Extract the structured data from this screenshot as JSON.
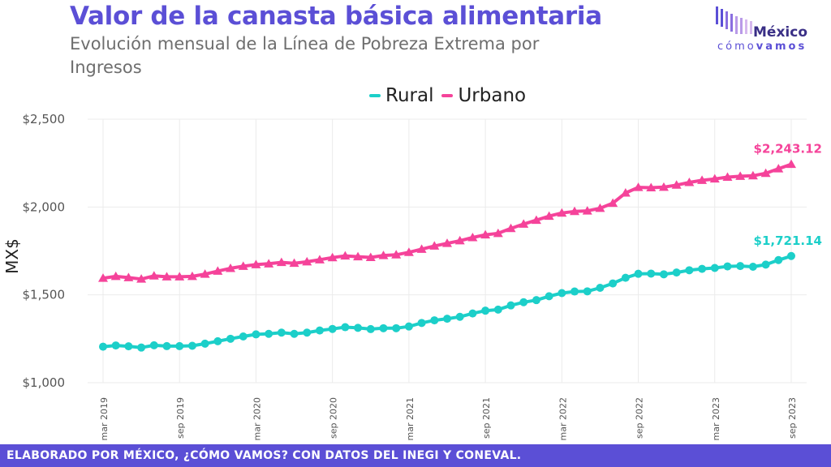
{
  "header": {
    "title": "Valor de la canasta básica alimentaria",
    "subtitle": "Evolución mensual de la Línea de Pobreza Extrema por Ingresos"
  },
  "logo": {
    "word1": "México",
    "word2_light": "cómo",
    "word2_bold": "vamos",
    "bar_colors": [
      "#5b4fd6",
      "#8a6fe0",
      "#b99ae8",
      "#d6b8ee"
    ]
  },
  "footer": {
    "text": "ELABORADO POR MÉXICO, ¿CÓMO VAMOS? CON DATOS DEL INEGI Y CONEVAL."
  },
  "colors": {
    "rural": "#1ccfc9",
    "urbano": "#f5439a",
    "brand": "#5b4fd6",
    "grid": "#ebebeb"
  },
  "chart_data": {
    "type": "line",
    "title": "Valor de la canasta básica alimentaria",
    "ylabel": "MX$",
    "xlabel": "",
    "ylim": [
      1000,
      2500
    ],
    "yticks": [
      1000,
      1500,
      2000,
      2500
    ],
    "ytick_labels": [
      "$1,000",
      "$1,500",
      "$2,000",
      "$2,500"
    ],
    "x_start": "2019-03",
    "xtick_labels": [
      "mar 2019",
      "sep 2019",
      "mar 2020",
      "sep 2020",
      "mar 2021",
      "sep 2021",
      "mar 2022",
      "sep 2022",
      "mar 2023",
      "sep 2023"
    ],
    "xtick_index": [
      0,
      6,
      12,
      18,
      24,
      30,
      36,
      42,
      48,
      54
    ],
    "grid": true,
    "legend": "top-center",
    "series": [
      {
        "name": "Rural",
        "marker": "circle",
        "end_label": "$1,721.14",
        "values": [
          1205,
          1212,
          1207,
          1200,
          1213,
          1208,
          1208,
          1210,
          1222,
          1236,
          1250,
          1263,
          1275,
          1278,
          1285,
          1278,
          1285,
          1297,
          1306,
          1316,
          1312,
          1305,
          1310,
          1310,
          1320,
          1340,
          1355,
          1364,
          1375,
          1394,
          1410,
          1416,
          1440,
          1458,
          1470,
          1492,
          1510,
          1519,
          1520,
          1540,
          1565,
          1597,
          1620,
          1621,
          1617,
          1627,
          1640,
          1648,
          1653,
          1662,
          1664,
          1660,
          1672,
          1698,
          1721.14
        ]
      },
      {
        "name": "Urbano",
        "marker": "triangle",
        "end_label": "$2,243.12",
        "values": [
          1595,
          1605,
          1598,
          1590,
          1608,
          1603,
          1603,
          1605,
          1618,
          1635,
          1651,
          1663,
          1672,
          1677,
          1685,
          1680,
          1688,
          1700,
          1712,
          1722,
          1717,
          1713,
          1724,
          1728,
          1742,
          1760,
          1778,
          1793,
          1808,
          1826,
          1842,
          1850,
          1878,
          1903,
          1925,
          1948,
          1966,
          1975,
          1978,
          1993,
          2022,
          2080,
          2112,
          2110,
          2113,
          2125,
          2140,
          2152,
          2160,
          2170,
          2175,
          2178,
          2192,
          2218,
          2243.12
        ]
      }
    ]
  }
}
